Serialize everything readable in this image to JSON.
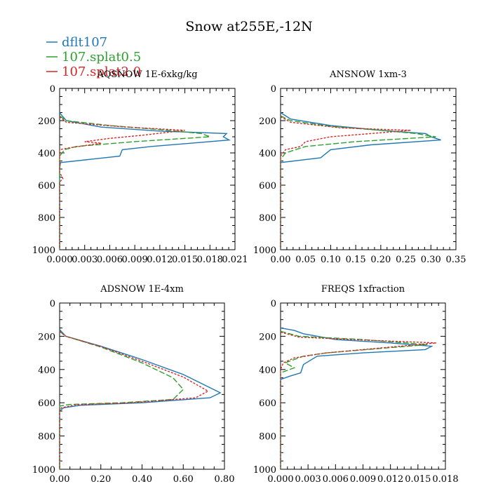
{
  "figure_title": "Snow at255E,-12N",
  "legend": [
    {
      "label": "dflt107",
      "color": "#1f77b4",
      "dash": "solid"
    },
    {
      "label": "107.splat0.5",
      "color": "#2ca02c",
      "dash": "dashed"
    },
    {
      "label": "107.splat2.0",
      "color": "#d62728",
      "dash": "dotted"
    }
  ],
  "chart_data": [
    {
      "type": "line",
      "title": "AQSNOW  1E-6xkg/kg",
      "xlim": [
        0,
        0.021
      ],
      "xticks": [
        "0.000",
        "0.003",
        "0.006",
        "0.009",
        "0.012",
        "0.015",
        "0.018",
        "0.021"
      ],
      "xtick_values": [
        0,
        0.003,
        0.006,
        0.009,
        0.012,
        0.015,
        0.018,
        0.021
      ],
      "ylim": [
        1000,
        0
      ],
      "yticks": [
        "0",
        "200",
        "400",
        "600",
        "800",
        "1000"
      ],
      "ytick_values": [
        0,
        200,
        400,
        600,
        800,
        1000
      ],
      "series": [
        {
          "name": "dflt107",
          "points": [
            [
              0,
              150
            ],
            [
              0.0003,
              170
            ],
            [
              0.0008,
              200
            ],
            [
              0.005,
              240
            ],
            [
              0.012,
              265
            ],
            [
              0.02,
              280
            ],
            [
              0.0196,
              300
            ],
            [
              0.0203,
              320
            ],
            [
              0.011,
              360
            ],
            [
              0.0075,
              380
            ],
            [
              0.0072,
              420
            ],
            [
              0.0001,
              460
            ],
            [
              0,
              500
            ],
            [
              0,
              1000
            ]
          ]
        },
        {
          "name": "107.splat0.5",
          "points": [
            [
              0,
              170
            ],
            [
              0.0008,
              200
            ],
            [
              0.006,
              230
            ],
            [
              0.013,
              260
            ],
            [
              0.017,
              280
            ],
            [
              0.018,
              300
            ],
            [
              0.009,
              330
            ],
            [
              0.002,
              360
            ],
            [
              0.0006,
              380
            ],
            [
              0,
              420
            ],
            [
              0,
              1000
            ]
          ]
        },
        {
          "name": "107.splat2.0",
          "points": [
            [
              0,
              175
            ],
            [
              0.0008,
              210
            ],
            [
              0.008,
              240
            ],
            [
              0.015,
              260
            ],
            [
              0.01,
              290
            ],
            [
              0.006,
              310
            ],
            [
              0.003,
              330
            ],
            [
              0.005,
              340
            ],
            [
              0.001,
              370
            ],
            [
              0,
              380
            ],
            [
              0,
              520
            ],
            [
              0.0004,
              560
            ],
            [
              0,
              580
            ],
            [
              0,
              1000
            ]
          ]
        }
      ]
    },
    {
      "type": "line",
      "title": "ANSNOW  1xm-3",
      "xlim": [
        0,
        0.35
      ],
      "xticks": [
        "0.00",
        "0.05",
        "0.10",
        "0.15",
        "0.20",
        "0.25",
        "0.30",
        "0.35"
      ],
      "xtick_values": [
        0,
        0.05,
        0.1,
        0.15,
        0.2,
        0.25,
        0.3,
        0.35
      ],
      "ylim": [
        1000,
        0
      ],
      "yticks": [
        "0",
        "200",
        "400",
        "600",
        "800",
        "1000"
      ],
      "ytick_values": [
        0,
        200,
        400,
        600,
        800,
        1000
      ],
      "series": [
        {
          "name": "dflt107",
          "points": [
            [
              0,
              150
            ],
            [
              0.02,
              190
            ],
            [
              0.1,
              230
            ],
            [
              0.2,
              260
            ],
            [
              0.29,
              280
            ],
            [
              0.3,
              300
            ],
            [
              0.32,
              320
            ],
            [
              0.18,
              350
            ],
            [
              0.1,
              380
            ],
            [
              0.08,
              430
            ],
            [
              0,
              460
            ],
            [
              0,
              1000
            ]
          ]
        },
        {
          "name": "107.splat0.5",
          "points": [
            [
              0,
              170
            ],
            [
              0.02,
              200
            ],
            [
              0.1,
              235
            ],
            [
              0.2,
              260
            ],
            [
              0.27,
              280
            ],
            [
              0.31,
              300
            ],
            [
              0.15,
              330
            ],
            [
              0.05,
              360
            ],
            [
              0.01,
              400
            ],
            [
              0,
              440
            ],
            [
              0,
              1000
            ]
          ]
        },
        {
          "name": "107.splat2.0",
          "points": [
            [
              0,
              175
            ],
            [
              0.02,
              210
            ],
            [
              0.12,
              245
            ],
            [
              0.26,
              260
            ],
            [
              0.18,
              280
            ],
            [
              0.1,
              300
            ],
            [
              0.05,
              330
            ],
            [
              0.04,
              360
            ],
            [
              0.01,
              380
            ],
            [
              0,
              420
            ],
            [
              0,
              560
            ],
            [
              0,
              1000
            ]
          ]
        }
      ]
    },
    {
      "type": "line",
      "title": "ADSNOW  1E-4xm",
      "xlim": [
        0,
        0.8
      ],
      "xticks": [
        "0.00",
        "0.20",
        "0.40",
        "0.60",
        "0.80"
      ],
      "xtick_values": [
        0,
        0.2,
        0.4,
        0.6,
        0.8
      ],
      "ylim": [
        1000,
        0
      ],
      "yticks": [
        "0",
        "200",
        "400",
        "600",
        "800",
        "1000"
      ],
      "ytick_values": [
        0,
        200,
        400,
        600,
        800,
        1000
      ],
      "series": [
        {
          "name": "dflt107",
          "points": [
            [
              0,
              160
            ],
            [
              0.03,
              200
            ],
            [
              0.2,
              260
            ],
            [
              0.4,
              340
            ],
            [
              0.6,
              430
            ],
            [
              0.78,
              540
            ],
            [
              0.73,
              570
            ],
            [
              0.4,
              600
            ],
            [
              0.1,
              615
            ],
            [
              0.02,
              630
            ],
            [
              0,
              650
            ],
            [
              0,
              1000
            ]
          ]
        },
        {
          "name": "107.splat0.5",
          "points": [
            [
              0,
              170
            ],
            [
              0.03,
              200
            ],
            [
              0.2,
              265
            ],
            [
              0.4,
              360
            ],
            [
              0.55,
              450
            ],
            [
              0.6,
              520
            ],
            [
              0.55,
              580
            ],
            [
              0.3,
              600
            ],
            [
              0.05,
              610
            ],
            [
              0,
              620
            ],
            [
              0,
              1000
            ]
          ]
        },
        {
          "name": "107.splat2.0",
          "points": [
            [
              0,
              170
            ],
            [
              0.03,
              200
            ],
            [
              0.2,
              262
            ],
            [
              0.4,
              350
            ],
            [
              0.6,
              445
            ],
            [
              0.72,
              530
            ],
            [
              0.66,
              570
            ],
            [
              0.35,
              600
            ],
            [
              0.08,
              612
            ],
            [
              0.01,
              630
            ],
            [
              0,
              640
            ],
            [
              0,
              1000
            ]
          ]
        }
      ]
    },
    {
      "type": "line",
      "title": "FREQS  1xfraction",
      "xlim": [
        0,
        0.018
      ],
      "xticks": [
        "0.000",
        "0.003",
        "0.006",
        "0.009",
        "0.012",
        "0.015",
        "0.018"
      ],
      "xtick_values": [
        0,
        0.003,
        0.006,
        0.009,
        0.012,
        0.015,
        0.018
      ],
      "ylim": [
        1000,
        0
      ],
      "yticks": [
        "0",
        "200",
        "400",
        "600",
        "800",
        "1000"
      ],
      "ytick_values": [
        0,
        200,
        400,
        600,
        800,
        1000
      ],
      "series": [
        {
          "name": "dflt107",
          "points": [
            [
              0,
              150
            ],
            [
              0.0015,
              165
            ],
            [
              0.0025,
              185
            ],
            [
              0.006,
              220
            ],
            [
              0.012,
              240
            ],
            [
              0.0165,
              260
            ],
            [
              0.0158,
              280
            ],
            [
              0.009,
              300
            ],
            [
              0.004,
              320
            ],
            [
              0.0025,
              370
            ],
            [
              0.0022,
              420
            ],
            [
              0.001,
              440
            ],
            [
              0,
              460
            ],
            [
              0,
              1000
            ]
          ]
        },
        {
          "name": "107.splat0.5",
          "points": [
            [
              0,
              170
            ],
            [
              0.002,
              200
            ],
            [
              0.009,
              220
            ],
            [
              0.016,
              250
            ],
            [
              0.005,
              300
            ],
            [
              0.0025,
              320
            ],
            [
              0.0005,
              360
            ],
            [
              0.0015,
              390
            ],
            [
              0,
              420
            ],
            [
              0,
              470
            ],
            [
              0,
              1000
            ]
          ]
        },
        {
          "name": "107.splat2.0",
          "points": [
            [
              0,
              175
            ],
            [
              0.002,
              205
            ],
            [
              0.01,
              225
            ],
            [
              0.017,
              240
            ],
            [
              0.011,
              270
            ],
            [
              0.005,
              300
            ],
            [
              0.0015,
              330
            ],
            [
              0.0003,
              360
            ],
            [
              0,
              400
            ],
            [
              0,
              540
            ],
            [
              0,
              1000
            ]
          ]
        }
      ]
    }
  ]
}
